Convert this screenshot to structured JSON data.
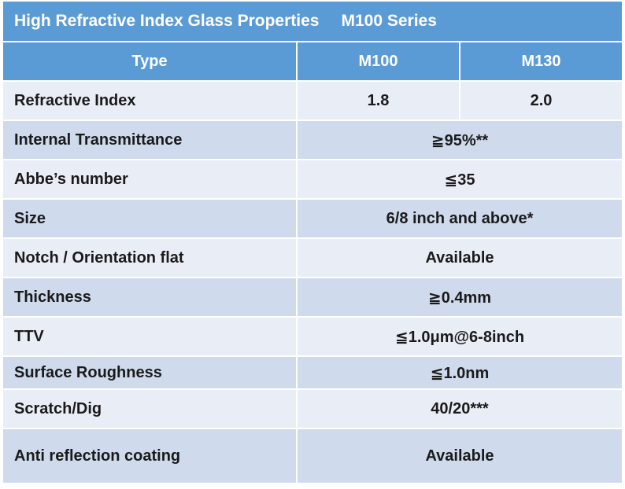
{
  "title": "High Refractive Index Glass Properties",
  "series": "M100 Series",
  "header": {
    "type": "Type",
    "col1": "M100",
    "col2": "M130"
  },
  "refractive_index": {
    "label": "Refractive Index",
    "m100": "1.8",
    "m130": "2.0"
  },
  "rows": [
    {
      "label": "Internal Transmittance",
      "value": "≧95%**"
    },
    {
      "label": "Abbe’s number",
      "value": "≦35"
    },
    {
      "label": "Size",
      "value": "6/8 inch and above*"
    },
    {
      "label": "Notch / Orientation flat",
      "value": "Available"
    },
    {
      "label": "Thickness",
      "value": "≧0.4mm"
    },
    {
      "label": "TTV",
      "value": "≦1.0μm@6-8inch"
    },
    {
      "label": "Surface Roughness",
      "value": "≦1.0nm"
    },
    {
      "label": "Scratch/Dig",
      "value": "40/20***"
    },
    {
      "label": "Anti reflection coating",
      "value": "Available"
    }
  ],
  "colors": {
    "header_blue": "#5b9bd5",
    "row_light": "#e9edf6",
    "row_dark": "#cfdaec"
  }
}
